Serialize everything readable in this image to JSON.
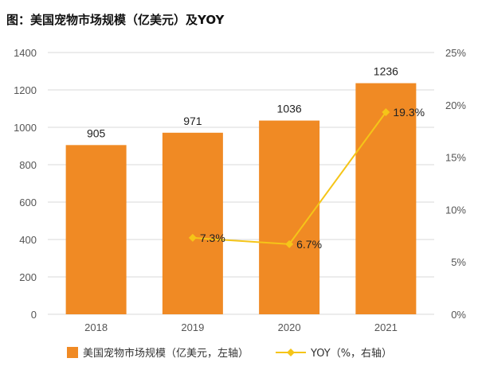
{
  "chart_data": {
    "type": "bar",
    "title": "图：美国宠物市场规模（亿美元）及YOY",
    "categories": [
      "2018",
      "2019",
      "2020",
      "2021"
    ],
    "series": [
      {
        "name": "美国宠物市场规模（亿美元，左轴）",
        "type": "bar",
        "axis": "left",
        "values": [
          905,
          971,
          1036,
          1236
        ],
        "labels": [
          "905",
          "971",
          "1036",
          "1236"
        ],
        "color": "#F08A24"
      },
      {
        "name": "YOY（%，右轴）",
        "type": "line",
        "axis": "right",
        "values": [
          null,
          7.3,
          6.7,
          19.3
        ],
        "labels": [
          "",
          "7.3%",
          "6.7%",
          "19.3%"
        ],
        "color": "#F5C518"
      }
    ],
    "y_left": {
      "range": [
        0,
        1400
      ],
      "ticks": [
        0,
        200,
        400,
        600,
        800,
        1000,
        1200,
        1400
      ],
      "tick_labels": [
        "0",
        "200",
        "400",
        "600",
        "800",
        "1000",
        "1200",
        "1400"
      ]
    },
    "y_right": {
      "range": [
        0,
        25
      ],
      "ticks": [
        0,
        5,
        10,
        15,
        20,
        25
      ],
      "tick_labels": [
        "0%",
        "5%",
        "10%",
        "15%",
        "20%",
        "25%"
      ]
    },
    "grid": true,
    "legend_position": "bottom"
  }
}
